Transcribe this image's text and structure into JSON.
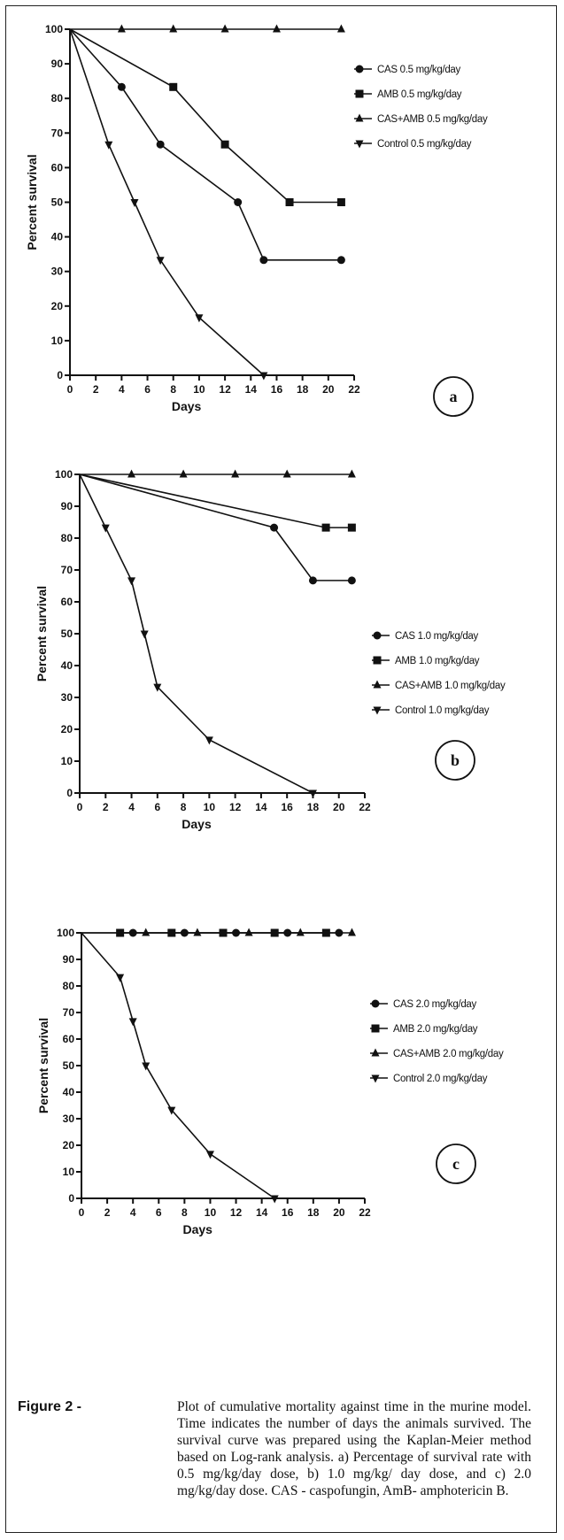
{
  "chart_data": [
    {
      "type": "line",
      "panel_label": "a",
      "xlabel": "Days",
      "ylabel": "Percent survival",
      "xlim": [
        0,
        22
      ],
      "ylim": [
        0,
        100
      ],
      "xticks": [
        "0",
        "2",
        "4",
        "6",
        "8",
        "10",
        "12",
        "14",
        "16",
        "18",
        "20",
        "22"
      ],
      "yticks": [
        "0",
        "10",
        "20",
        "30",
        "40",
        "50",
        "60",
        "70",
        "80",
        "90",
        "100"
      ],
      "legend_position": "top-right",
      "series": [
        {
          "name": "CAS 0.5 mg/kg/day",
          "marker": "circle",
          "points": [
            [
              0,
              100
            ],
            [
              4,
              83.3
            ],
            [
              7,
              66.7
            ],
            [
              13,
              50
            ],
            [
              15,
              33.3
            ],
            [
              21,
              33.3
            ]
          ]
        },
        {
          "name": "AMB 0.5 mg/kg/day",
          "marker": "square",
          "points": [
            [
              0,
              100
            ],
            [
              8,
              83.3
            ],
            [
              12,
              66.7
            ],
            [
              17,
              50
            ],
            [
              21,
              50
            ]
          ]
        },
        {
          "name": "CAS+AMB 0.5 mg/kg/day",
          "marker": "triangle-up",
          "points": [
            [
              0,
              100
            ],
            [
              4,
              100
            ],
            [
              8,
              100
            ],
            [
              12,
              100
            ],
            [
              16,
              100
            ],
            [
              21,
              100
            ]
          ]
        },
        {
          "name": "Control 0.5 mg/kg/day",
          "marker": "triangle-down",
          "points": [
            [
              0,
              100
            ],
            [
              3,
              66.7
            ],
            [
              5,
              50
            ],
            [
              7,
              33.3
            ],
            [
              10,
              16.7
            ],
            [
              15,
              0
            ]
          ]
        }
      ]
    },
    {
      "type": "line",
      "panel_label": "b",
      "xlabel": "Days",
      "ylabel": "Percent survival",
      "xlim": [
        0,
        22
      ],
      "ylim": [
        0,
        100
      ],
      "xticks": [
        "0",
        "2",
        "4",
        "6",
        "8",
        "10",
        "12",
        "14",
        "16",
        "18",
        "20",
        "22"
      ],
      "yticks": [
        "0",
        "10",
        "20",
        "30",
        "40",
        "50",
        "60",
        "70",
        "80",
        "90",
        "100"
      ],
      "legend_position": "right",
      "series": [
        {
          "name": "CAS 1.0 mg/kg/day",
          "marker": "circle",
          "points": [
            [
              0,
              100
            ],
            [
              15,
              83.3
            ],
            [
              18,
              66.7
            ],
            [
              21,
              66.7
            ]
          ]
        },
        {
          "name": "AMB 1.0 mg/kg/day",
          "marker": "square",
          "points": [
            [
              0,
              100
            ],
            [
              19,
              83.3
            ],
            [
              21,
              83.3
            ]
          ]
        },
        {
          "name": "CAS+AMB 1.0 mg/kg/day",
          "marker": "triangle-up",
          "points": [
            [
              0,
              100
            ],
            [
              4,
              100
            ],
            [
              8,
              100
            ],
            [
              12,
              100
            ],
            [
              16,
              100
            ],
            [
              21,
              100
            ]
          ]
        },
        {
          "name": "Control 1.0 mg/kg/day",
          "marker": "triangle-down",
          "points": [
            [
              0,
              100
            ],
            [
              2,
              83.3
            ],
            [
              4,
              66.7
            ],
            [
              5,
              50
            ],
            [
              6,
              33.3
            ],
            [
              10,
              16.7
            ],
            [
              18,
              0
            ]
          ]
        }
      ]
    },
    {
      "type": "line",
      "panel_label": "c",
      "xlabel": "Days",
      "ylabel": "Percent survival",
      "xlim": [
        0,
        22
      ],
      "ylim": [
        0,
        100
      ],
      "xticks": [
        "0",
        "2",
        "4",
        "6",
        "8",
        "10",
        "12",
        "14",
        "16",
        "18",
        "20",
        "22"
      ],
      "yticks": [
        "0",
        "10",
        "20",
        "30",
        "40",
        "50",
        "60",
        "70",
        "80",
        "90",
        "100"
      ],
      "legend_position": "right",
      "series": [
        {
          "name": "CAS 2.0 mg/kg/day",
          "marker": "circle",
          "points": [
            [
              0,
              100
            ],
            [
              4,
              100
            ],
            [
              8,
              100
            ],
            [
              12,
              100
            ],
            [
              16,
              100
            ],
            [
              20,
              100
            ]
          ]
        },
        {
          "name": "AMB 2.0 mg/kg/day",
          "marker": "square",
          "points": [
            [
              3,
              100
            ],
            [
              7,
              100
            ],
            [
              11,
              100
            ],
            [
              15,
              100
            ],
            [
              19,
              100
            ]
          ]
        },
        {
          "name": "CAS+AMB 2.0 mg/kg/day",
          "marker": "triangle-up",
          "points": [
            [
              0,
              100
            ],
            [
              5,
              100
            ],
            [
              9,
              100
            ],
            [
              13,
              100
            ],
            [
              17,
              100
            ],
            [
              21,
              100
            ]
          ]
        },
        {
          "name": "Control 2.0 mg/kg/day",
          "marker": "triangle-down",
          "points": [
            [
              0,
              100
            ],
            [
              3,
              83.3
            ],
            [
              4,
              66.7
            ],
            [
              5,
              50
            ],
            [
              7,
              33.3
            ],
            [
              10,
              16.7
            ],
            [
              15,
              0
            ]
          ]
        }
      ]
    }
  ],
  "caption": {
    "figure_label": "Figure 2 -",
    "text": "Plot of cumulative mortality against time in the murine model. Time indicates the number of days the animals survived. The survival curve was prepared using the Kaplan-Meier method based on Log-rank analysis. a) Percentage of survival rate with 0.5 mg/kg/day dose, b) 1.0 mg/kg/ day dose, and c) 2.0 mg/kg/day dose. CAS - caspofungin, AmB- amphotericin B."
  }
}
